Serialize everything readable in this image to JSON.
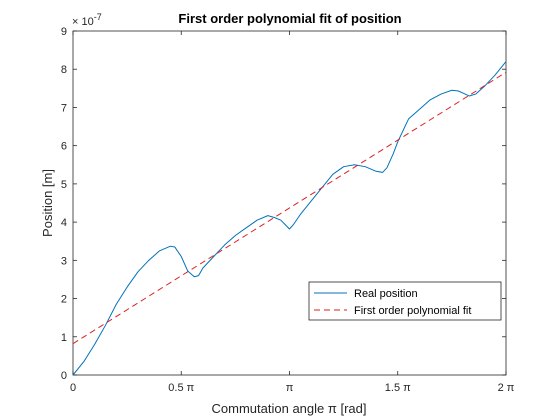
{
  "chart_data": {
    "type": "line",
    "title": "First order polynomial fit of position",
    "xlabel": "Commutation angle π [rad]",
    "ylabel": "Position [m]",
    "xlim": [
      0,
      2
    ],
    "ylim": [
      0,
      9
    ],
    "y_exponent_label": "× 10",
    "y_exponent_value": "-7",
    "x_ticks": [
      {
        "value": 0,
        "label": "0"
      },
      {
        "value": 0.5,
        "label": "0.5 π"
      },
      {
        "value": 1,
        "label": "π"
      },
      {
        "value": 1.5,
        "label": "1.5 π"
      },
      {
        "value": 2,
        "label": "2 π"
      }
    ],
    "y_ticks": [
      {
        "value": 0,
        "label": "0"
      },
      {
        "value": 1,
        "label": "1"
      },
      {
        "value": 2,
        "label": "2"
      },
      {
        "value": 3,
        "label": "3"
      },
      {
        "value": 4,
        "label": "4"
      },
      {
        "value": 5,
        "label": "5"
      },
      {
        "value": 6,
        "label": "6"
      },
      {
        "value": 7,
        "label": "7"
      },
      {
        "value": 8,
        "label": "8"
      },
      {
        "value": 9,
        "label": "9"
      }
    ],
    "grid": false,
    "legend_position": "bottom-right",
    "series": [
      {
        "name": "Real position",
        "style": "solid",
        "color": "#0072BD",
        "x": [
          0,
          0.05,
          0.1,
          0.15,
          0.2,
          0.25,
          0.3,
          0.35,
          0.4,
          0.45,
          0.47,
          0.5,
          0.53,
          0.56,
          0.58,
          0.6,
          0.65,
          0.7,
          0.75,
          0.8,
          0.85,
          0.9,
          0.93,
          0.96,
          1.0,
          1.02,
          1.05,
          1.1,
          1.15,
          1.2,
          1.25,
          1.3,
          1.35,
          1.4,
          1.43,
          1.45,
          1.48,
          1.5,
          1.55,
          1.6,
          1.65,
          1.7,
          1.75,
          1.78,
          1.8,
          1.83,
          1.86,
          1.9,
          1.95,
          2.0
        ],
        "y": [
          0.0,
          0.35,
          0.8,
          1.3,
          1.85,
          2.3,
          2.7,
          3.0,
          3.25,
          3.37,
          3.35,
          3.1,
          2.72,
          2.57,
          2.6,
          2.8,
          3.1,
          3.4,
          3.65,
          3.85,
          4.05,
          4.17,
          4.12,
          4.05,
          3.82,
          3.95,
          4.2,
          4.55,
          4.9,
          5.25,
          5.45,
          5.5,
          5.45,
          5.33,
          5.3,
          5.42,
          5.8,
          6.1,
          6.7,
          6.95,
          7.2,
          7.35,
          7.45,
          7.43,
          7.38,
          7.3,
          7.35,
          7.55,
          7.85,
          8.2
        ]
      },
      {
        "name": "First order polynomial fit",
        "style": "dashed",
        "color": "#DD2222",
        "x": [
          0,
          2
        ],
        "y": [
          0.82,
          7.92
        ]
      }
    ]
  }
}
